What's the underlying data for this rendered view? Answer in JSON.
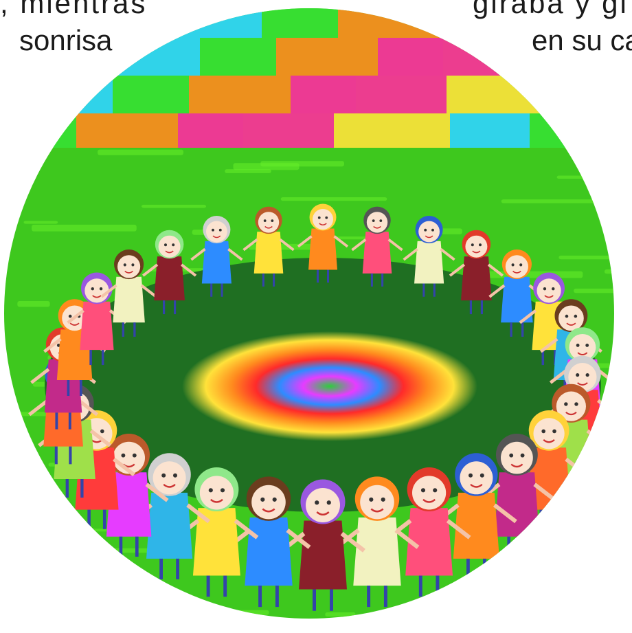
{
  "story_text": {
    "line1_left": ", mientras",
    "line2_left": "sonrisa",
    "line1_right": "giraba y gi",
    "line2_right": "en su ca"
  },
  "illustration": {
    "subject": "children holding hands in a circle on grass around a rainbow",
    "colors": {
      "grass": "#3ec81e",
      "grass_light": "#66ef2a",
      "inner_field": "#1f6f22",
      "sky_bands": [
        "#ff2d9b",
        "#ffe23a",
        "#2fd4ff",
        "#36e033",
        "#ff8a1e",
        "#ff2aa0"
      ],
      "ring_outer": "#ffe23a",
      "ring_orange": "#ff8a1e",
      "ring_red": "#ff2a2a",
      "ring_blue": "#2d8cff",
      "ring_magenta": "#e63cff",
      "ring_center": "#2ccf3a"
    },
    "children_count": 30
  }
}
